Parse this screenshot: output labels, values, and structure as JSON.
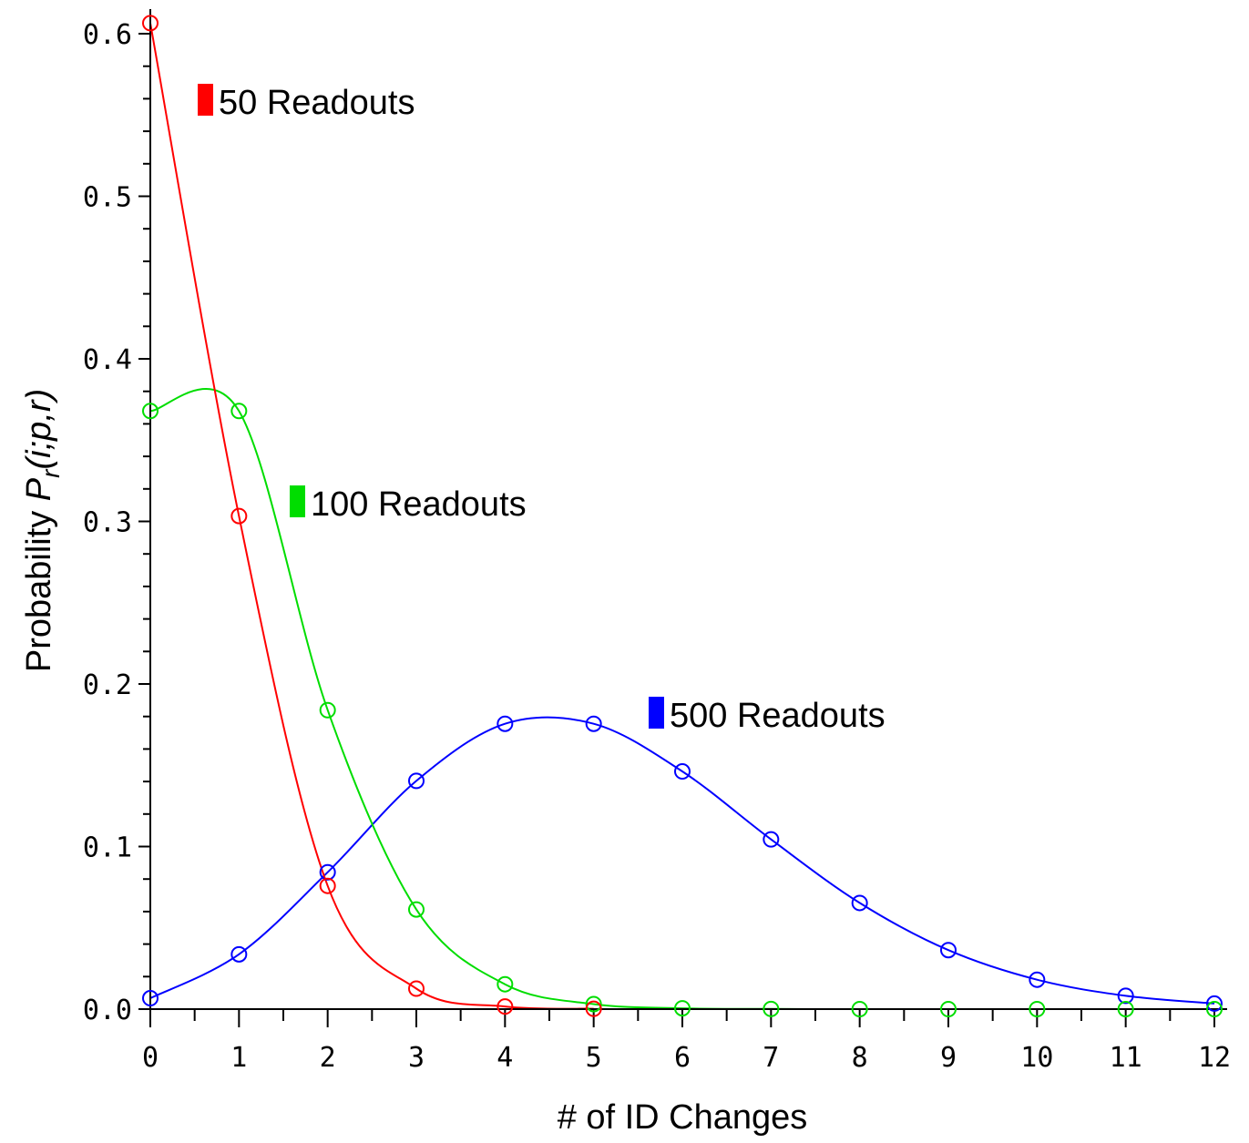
{
  "chart_data": {
    "type": "line",
    "title": "",
    "xlabel": "# of ID Changes",
    "ylabel": "Probability P_r(i;p,r)",
    "ylabel_parts": {
      "prefix": "Probability ",
      "symbol": "P",
      "subscript": "r",
      "args": "(i;p,r)"
    },
    "xlim": [
      0,
      12
    ],
    "ylim": [
      0,
      0.6
    ],
    "xticks": [
      "0",
      "1",
      "2",
      "3",
      "4",
      "5",
      "6",
      "7",
      "8",
      "9",
      "10",
      "11",
      "12"
    ],
    "yticks": [
      "0.0",
      "0.1",
      "0.2",
      "0.3",
      "0.4",
      "0.5",
      "0.6"
    ],
    "grid": false,
    "series": [
      {
        "name": "50 Readouts",
        "color": "#ff0000",
        "x": [
          0,
          1,
          2,
          3,
          4,
          5
        ],
        "values": [
          0.6065,
          0.3033,
          0.0758,
          0.0126,
          0.0016,
          0.0002
        ]
      },
      {
        "name": "100 Readouts",
        "color": "#00dd00",
        "x": [
          0,
          1,
          2,
          3,
          4,
          5,
          6,
          7,
          8,
          9,
          10,
          11,
          12
        ],
        "values": [
          0.3679,
          0.3679,
          0.1839,
          0.0613,
          0.0153,
          0.0031,
          0.0005,
          0.0001,
          0.0,
          0.0,
          0.0,
          0.0,
          0.0
        ]
      },
      {
        "name": "500 Readouts",
        "color": "#0000ff",
        "x": [
          0,
          1,
          2,
          3,
          4,
          5,
          6,
          7,
          8,
          9,
          10,
          11,
          12
        ],
        "values": [
          0.0067,
          0.0337,
          0.0842,
          0.1404,
          0.1755,
          0.1755,
          0.1462,
          0.1044,
          0.0653,
          0.0363,
          0.0181,
          0.0082,
          0.0034
        ]
      }
    ]
  }
}
